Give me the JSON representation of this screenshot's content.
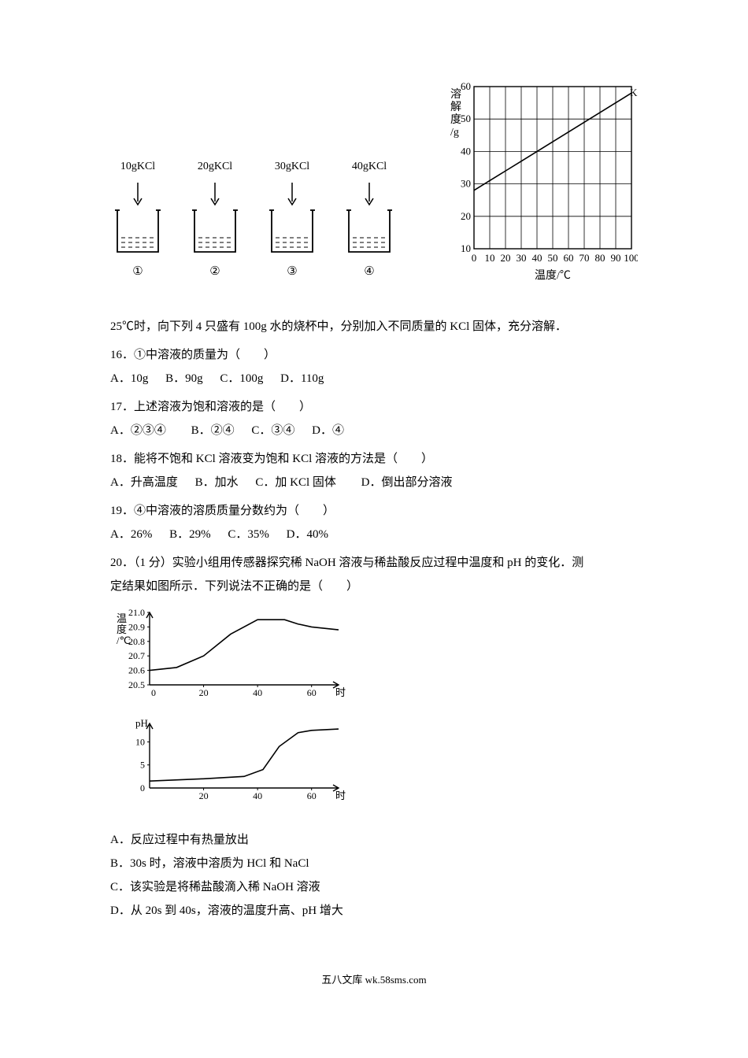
{
  "beakers": {
    "labels": [
      "10gKCl",
      "20gKCl",
      "30gKCl",
      "40gKCl"
    ],
    "numbers": [
      "①",
      "②",
      "③",
      "④"
    ],
    "fill_levels": [
      0.35,
      0.35,
      0.35,
      0.35
    ],
    "beaker_stroke": "#000000",
    "water_dash": "#000000"
  },
  "solubility_chart": {
    "type": "line",
    "y_label_lines": [
      "溶",
      "解",
      "度",
      "/g"
    ],
    "x_label": "温度/℃",
    "series_label": "KCl",
    "xlim": [
      0,
      100
    ],
    "ylim": [
      10,
      60
    ],
    "xticks": [
      0,
      10,
      20,
      30,
      40,
      50,
      60,
      70,
      80,
      90,
      100
    ],
    "yticks": [
      10,
      20,
      30,
      40,
      50,
      60
    ],
    "line_points": [
      [
        0,
        28
      ],
      [
        10,
        31
      ],
      [
        20,
        34
      ],
      [
        30,
        37
      ],
      [
        40,
        40
      ],
      [
        50,
        43
      ],
      [
        60,
        46
      ],
      [
        70,
        49
      ],
      [
        80,
        52
      ],
      [
        90,
        55
      ],
      [
        100,
        58
      ]
    ],
    "grid_color": "#000000",
    "line_color": "#000000",
    "background": "#ffffff",
    "axis_fontsize": 13,
    "label_fontsize": 14
  },
  "intro_text": "25℃时，向下列 4 只盛有 100g 水的烧杯中，分别加入不同质量的 KCl 固体，充分溶解．",
  "q16": {
    "stem": "16．①中溶液的质量为（　　）",
    "opts": [
      "A．10g",
      "B．90g",
      "C．100g",
      "D．110g"
    ]
  },
  "q17": {
    "stem": "17．上述溶液为饱和溶液的是（　　）",
    "opts": [
      "A．②③④",
      "B．②④",
      "C．③④",
      "D．④"
    ]
  },
  "q18": {
    "stem": "18．能将不饱和 KCl 溶液变为饱和 KCl 溶液的方法是（　　）",
    "opts": [
      "A．升高温度",
      "B．加水",
      "C．加 KCl 固体",
      "D．倒出部分溶液"
    ]
  },
  "q19": {
    "stem": "19．④中溶液的溶质质量分数约为（　　）",
    "opts": [
      "A．26%",
      "B．29%",
      "C．35%",
      "D．40%"
    ]
  },
  "q20": {
    "stem1": "20．（1 分）实验小组用传感器探究稀 NaOH 溶液与稀盐酸反应过程中温度和 pH 的变化．测",
    "stem2": "定结果如图所示．下列说法不正确的是（　　）",
    "temp_chart": {
      "type": "line",
      "y_label_lines": [
        "温",
        "度",
        "/℃"
      ],
      "x_label": "时间/s",
      "ylim": [
        20.5,
        21.0
      ],
      "yticks": [
        20.5,
        20.6,
        20.7,
        20.8,
        20.9,
        21.0
      ],
      "xlim": [
        0,
        70
      ],
      "xticks": [
        0,
        20,
        40,
        60
      ],
      "line_points": [
        [
          0,
          20.6
        ],
        [
          10,
          20.62
        ],
        [
          20,
          20.7
        ],
        [
          30,
          20.85
        ],
        [
          40,
          20.95
        ],
        [
          50,
          20.95
        ],
        [
          55,
          20.92
        ],
        [
          60,
          20.9
        ],
        [
          70,
          20.88
        ]
      ],
      "line_color": "#000000",
      "axis_color": "#000000",
      "axis_fontsize": 12,
      "background": "#ffffff"
    },
    "ph_chart": {
      "type": "line",
      "y_label": "pH",
      "x_label": "时间/s",
      "ylim": [
        0,
        14
      ],
      "yticks": [
        0,
        5,
        10
      ],
      "xlim": [
        0,
        70
      ],
      "xticks": [
        0,
        20,
        40,
        60
      ],
      "line_points": [
        [
          0,
          1.5
        ],
        [
          20,
          2
        ],
        [
          35,
          2.5
        ],
        [
          42,
          4
        ],
        [
          48,
          9
        ],
        [
          55,
          12
        ],
        [
          60,
          12.5
        ],
        [
          70,
          12.8
        ]
      ],
      "line_color": "#000000",
      "axis_color": "#000000",
      "axis_fontsize": 12,
      "background": "#ffffff"
    },
    "opts": [
      "A．反应过程中有热量放出",
      "B．30s 时，溶液中溶质为 HCl 和 NaCl",
      "C．该实验是将稀盐酸滴入稀 NaOH 溶液",
      "D．从 20s 到 40s，溶液的温度升高、pH 增大"
    ]
  },
  "footer": "五八文库 wk.58sms.com"
}
